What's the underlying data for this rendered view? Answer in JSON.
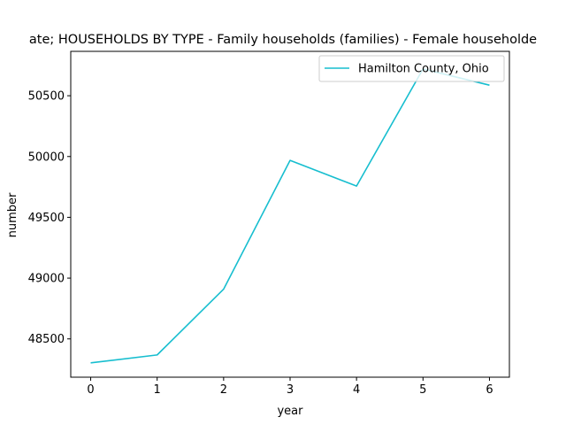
{
  "chart_data": {
    "type": "line",
    "title": "ate; HOUSEHOLDS BY TYPE - Family households (families) - Female householde",
    "xlabel": "year",
    "ylabel": "number",
    "x": [
      0,
      1,
      2,
      3,
      4,
      5,
      6
    ],
    "xticks": [
      "0",
      "1",
      "2",
      "3",
      "4",
      "5",
      "6"
    ],
    "yticks": [
      "48500",
      "49000",
      "49500",
      "50000",
      "50500"
    ],
    "xlim": [
      -0.3,
      6.3
    ],
    "ylim": [
      48185,
      50865
    ],
    "series": [
      {
        "name": "Hamilton County, Ohio",
        "color": "#17becf",
        "values": [
          48303,
          48368,
          48909,
          49968,
          49757,
          50720,
          50587
        ]
      }
    ],
    "legend": "top-right",
    "grid": false
  }
}
